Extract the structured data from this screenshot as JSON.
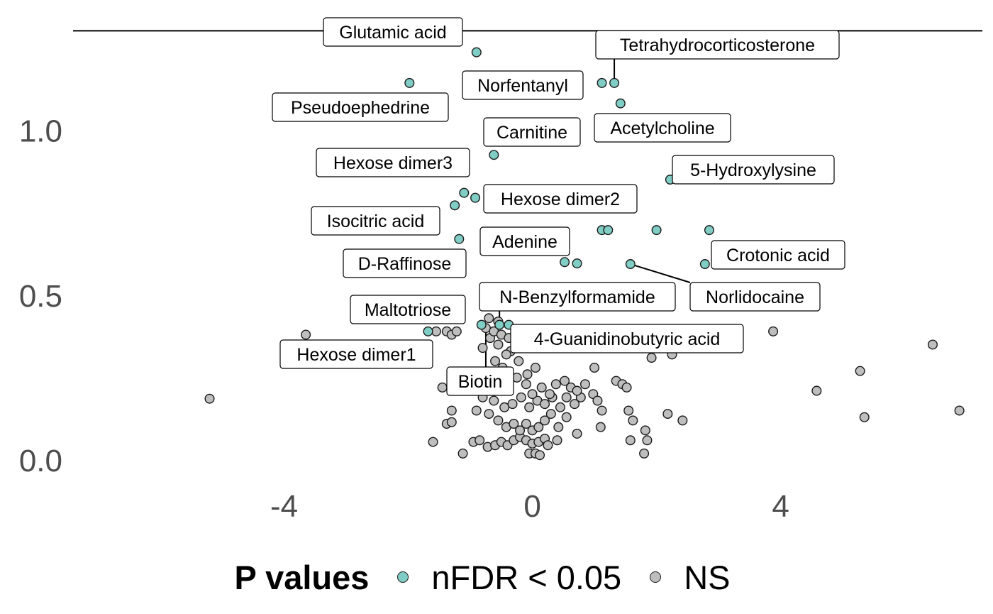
{
  "chart_data": {
    "type": "scatter",
    "title": "",
    "xlabel": "",
    "ylabel": "",
    "xlim": [
      -7.4,
      7.25
    ],
    "ylim": [
      -0.09,
      1.36
    ],
    "x_ticks": [
      -4,
      0,
      4
    ],
    "x_tick_labels": [
      "-4",
      "0",
      "4"
    ],
    "y_ticks": [
      0.0,
      0.5,
      1.0
    ],
    "y_tick_labels": [
      "0.0",
      "0.5",
      "1.0"
    ],
    "hline_y": 1.301,
    "grid": false,
    "legend": {
      "placement": "bottom",
      "title": "P values",
      "entries": [
        {
          "label": "nFDR < 0.05",
          "color": "#7fcdc4"
        },
        {
          "label": "NS",
          "color": "#bebebe"
        }
      ]
    },
    "series": [
      {
        "name": "nFDR < 0.05",
        "color": "#7fcdc4",
        "points": [
          [
            -0.9,
            1.236
          ],
          [
            -1.98,
            1.143
          ],
          [
            1.12,
            1.143
          ],
          [
            1.32,
            1.143
          ],
          [
            1.42,
            1.081
          ],
          [
            -0.62,
            0.925
          ],
          [
            2.22,
            0.85
          ],
          [
            -1.1,
            0.81
          ],
          [
            -0.92,
            0.795
          ],
          [
            -1.25,
            0.772
          ],
          [
            -1.18,
            0.67
          ],
          [
            1.12,
            0.697
          ],
          [
            1.22,
            0.697
          ],
          [
            2.0,
            0.697
          ],
          [
            2.85,
            0.697
          ],
          [
            0.52,
            0.6
          ],
          [
            0.72,
            0.596
          ],
          [
            1.58,
            0.594
          ],
          [
            2.78,
            0.594
          ],
          [
            -1.68,
            0.39
          ],
          [
            -0.82,
            0.41
          ],
          [
            -0.53,
            0.41
          ],
          [
            -0.38,
            0.41
          ]
        ]
      },
      {
        "name": "NS",
        "color": "#bebebe",
        "points": [
          [
            -5.2,
            0.186
          ],
          [
            -3.65,
            0.38
          ],
          [
            -1.55,
            0.39
          ],
          [
            -1.38,
            0.39
          ],
          [
            -1.3,
            0.38
          ],
          [
            -1.22,
            0.39
          ],
          [
            -1.45,
            0.22
          ],
          [
            -1.6,
            0.055
          ],
          [
            -1.3,
            0.15
          ],
          [
            -1.38,
            0.11
          ],
          [
            -1.3,
            0.115
          ],
          [
            -1.12,
            0.02
          ],
          [
            -0.95,
            0.055
          ],
          [
            -0.85,
            0.06
          ],
          [
            -0.72,
            0.04
          ],
          [
            -0.6,
            0.045
          ],
          [
            -0.5,
            0.055
          ],
          [
            -0.4,
            0.045
          ],
          [
            -0.3,
            0.06
          ],
          [
            -0.2,
            0.07
          ],
          [
            -0.1,
            0.06
          ],
          [
            0.0,
            0.05
          ],
          [
            0.1,
            0.055
          ],
          [
            0.2,
            0.065
          ],
          [
            -0.05,
            0.02
          ],
          [
            0.05,
            0.02
          ],
          [
            0.12,
            0.015
          ],
          [
            0.25,
            0.045
          ],
          [
            0.4,
            0.06
          ],
          [
            -0.9,
            0.15
          ],
          [
            -0.7,
            0.14
          ],
          [
            -0.55,
            0.12
          ],
          [
            -0.42,
            0.1
          ],
          [
            -0.3,
            0.11
          ],
          [
            -0.2,
            0.09
          ],
          [
            -0.1,
            0.11
          ],
          [
            0.0,
            0.09
          ],
          [
            0.1,
            0.1
          ],
          [
            0.2,
            0.12
          ],
          [
            0.3,
            0.14
          ],
          [
            0.42,
            0.1
          ],
          [
            0.55,
            0.13
          ],
          [
            0.72,
            0.08
          ],
          [
            -0.8,
            0.19
          ],
          [
            -0.62,
            0.18
          ],
          [
            -0.45,
            0.16
          ],
          [
            -0.32,
            0.17
          ],
          [
            -0.18,
            0.19
          ],
          [
            -0.05,
            0.16
          ],
          [
            0.08,
            0.18
          ],
          [
            0.2,
            0.17
          ],
          [
            0.32,
            0.19
          ],
          [
            0.45,
            0.16
          ],
          [
            0.55,
            0.19
          ],
          [
            0.68,
            0.17
          ],
          [
            0.78,
            0.19
          ],
          [
            -0.88,
            0.23
          ],
          [
            -0.72,
            0.26
          ],
          [
            -0.55,
            0.24
          ],
          [
            -0.4,
            0.22
          ],
          [
            -0.25,
            0.25
          ],
          [
            -0.1,
            0.23
          ],
          [
            0.0,
            0.2
          ],
          [
            0.15,
            0.22
          ],
          [
            0.28,
            0.2
          ],
          [
            0.38,
            0.23
          ],
          [
            0.52,
            0.24
          ],
          [
            0.62,
            0.22
          ],
          [
            0.72,
            0.21
          ],
          [
            -0.6,
            0.3
          ],
          [
            -0.48,
            0.28
          ],
          [
            -0.35,
            0.33
          ],
          [
            -0.22,
            0.3
          ],
          [
            -0.08,
            0.26
          ],
          [
            0.05,
            0.28
          ],
          [
            -0.8,
            0.34
          ],
          [
            -0.68,
            0.37
          ],
          [
            -0.55,
            0.35
          ],
          [
            -0.42,
            0.32
          ],
          [
            -0.75,
            0.4
          ],
          [
            -0.62,
            0.39
          ],
          [
            -0.5,
            0.38
          ],
          [
            -0.38,
            0.37
          ],
          [
            -0.7,
            0.43
          ],
          [
            -0.55,
            0.42
          ],
          [
            0.85,
            0.23
          ],
          [
            0.98,
            0.2
          ],
          [
            1.05,
            0.18
          ],
          [
            1.12,
            0.15
          ],
          [
            1.1,
            0.1
          ],
          [
            1.35,
            0.24
          ],
          [
            1.45,
            0.23
          ],
          [
            1.52,
            0.22
          ],
          [
            1.0,
            0.28
          ],
          [
            1.55,
            0.15
          ],
          [
            1.62,
            0.12
          ],
          [
            1.82,
            0.09
          ],
          [
            1.58,
            0.06
          ],
          [
            1.85,
            0.06
          ],
          [
            1.8,
            0.02
          ],
          [
            2.18,
            0.14
          ],
          [
            2.42,
            0.12
          ],
          [
            2.08,
            0.34
          ],
          [
            2.25,
            0.32
          ],
          [
            2.38,
            0.34
          ],
          [
            1.92,
            0.31
          ],
          [
            3.88,
            0.39
          ],
          [
            4.58,
            0.21
          ],
          [
            5.28,
            0.27
          ],
          [
            5.35,
            0.13
          ],
          [
            6.45,
            0.35
          ],
          [
            6.88,
            0.15
          ],
          [
            0.3,
            0.34
          ],
          [
            0.65,
            0.34
          ],
          [
            1.35,
            0.34
          ]
        ]
      }
    ],
    "annotations": [
      {
        "text": "Glutamic acid",
        "point": [
          -0.9,
          1.236
        ]
      },
      {
        "text": "Tetrahydrocorticosterone",
        "point": [
          1.32,
          1.143
        ]
      },
      {
        "text": "Norfentanyl",
        "point": [
          1.12,
          1.143
        ]
      },
      {
        "text": "Pseudoephedrine",
        "point": [
          -1.98,
          1.143
        ]
      },
      {
        "text": "Acetylcholine",
        "point": [
          1.42,
          1.081
        ]
      },
      {
        "text": "Carnitine",
        "point": [
          -0.62,
          0.925
        ]
      },
      {
        "text": "Hexose dimer3",
        "point": [
          -1.1,
          0.81
        ]
      },
      {
        "text": "5-Hydroxylysine",
        "point": [
          2.22,
          0.85
        ]
      },
      {
        "text": "Hexose dimer2",
        "point": [
          -0.92,
          0.795
        ]
      },
      {
        "text": "Isocitric acid",
        "point": [
          -1.18,
          0.67
        ]
      },
      {
        "text": "Adenine",
        "point": [
          0.52,
          0.6
        ]
      },
      {
        "text": "Crotonic acid",
        "point": [
          2.78,
          0.594
        ]
      },
      {
        "text": "D-Raffinose",
        "point": [
          -1.25,
          0.772
        ]
      },
      {
        "text": "Norlidocaine",
        "point": [
          1.58,
          0.594
        ]
      },
      {
        "text": "N-Benzylformamide",
        "point": [
          -0.53,
          0.41
        ]
      },
      {
        "text": "Maltotriose",
        "point": [
          -1.68,
          0.39
        ]
      },
      {
        "text": "4-Guanidinobutyric acid",
        "point": [
          -0.38,
          0.41
        ]
      },
      {
        "text": "Hexose dimer1",
        "point": [
          -0.82,
          0.41
        ]
      },
      {
        "text": "Biotin",
        "point": [
          -0.75,
          0.4
        ]
      }
    ]
  }
}
